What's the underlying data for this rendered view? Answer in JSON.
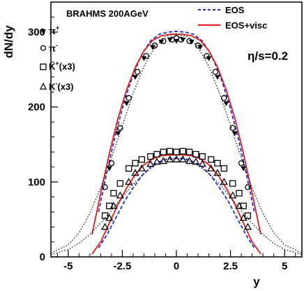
{
  "chart_data": {
    "type": "scatter",
    "title": "BRAHMS 200AGeV",
    "xlabel": "y",
    "ylabel": "dN/dy",
    "xlim": [
      -5.8,
      5.8
    ],
    "ylim": [
      0,
      340
    ],
    "x_ticks": [
      -5,
      -2.5,
      0,
      2.5,
      5
    ],
    "x_tick_labels": [
      "-5",
      "-2.5",
      "0",
      "2.5",
      "5"
    ],
    "y_ticks": [
      0,
      100,
      200,
      300
    ],
    "y_tick_labels": [
      "0",
      "100",
      "200",
      "300"
    ],
    "annotation": "η/s=0.2",
    "legend_placement": "top-left (markers), top-right (lines)",
    "series": [
      {
        "name": "EOS",
        "kind": "line",
        "style": "dashed",
        "color": "#1f2fd0",
        "x": [
          -3.6,
          -3.2,
          -2.8,
          -2.4,
          -2.0,
          -1.6,
          -1.2,
          -0.8,
          -0.4,
          0,
          0.4,
          0.8,
          1.2,
          1.6,
          2.0,
          2.4,
          2.8,
          3.2,
          3.6
        ],
        "y": [
          60,
          115,
          165,
          208,
          243,
          270,
          288,
          297,
          300,
          301,
          300,
          297,
          288,
          270,
          243,
          208,
          165,
          115,
          60
        ]
      },
      {
        "name": "EOS+visc",
        "kind": "line",
        "style": "solid",
        "color": "#e31a1c",
        "x": [
          -3.9,
          -3.5,
          -3.1,
          -2.7,
          -2.3,
          -1.9,
          -1.5,
          -1.1,
          -0.7,
          -0.3,
          0,
          0.3,
          0.7,
          1.1,
          1.5,
          1.9,
          2.3,
          2.7,
          3.1,
          3.5,
          3.9
        ],
        "y": [
          30,
          85,
          138,
          185,
          223,
          253,
          275,
          289,
          295,
          297,
          297,
          297,
          295,
          289,
          275,
          253,
          223,
          185,
          138,
          85,
          30
        ]
      },
      {
        "name": "EOS",
        "kind": "line",
        "style": "dashed",
        "color": "#1f2fd0",
        "x": [
          -3.6,
          -3.2,
          -2.8,
          -2.4,
          -2.0,
          -1.6,
          -1.2,
          -0.8,
          -0.4,
          0,
          0.4,
          0.8,
          1.2,
          1.6,
          2.0,
          2.4,
          2.8,
          3.2,
          3.6
        ],
        "y": [
          12,
          30,
          52,
          74,
          92,
          108,
          120,
          127,
          131,
          132,
          131,
          127,
          120,
          108,
          92,
          74,
          52,
          30,
          12
        ]
      },
      {
        "name": "EOS+visc",
        "kind": "line",
        "style": "solid",
        "color": "#e31a1c",
        "x": [
          -3.9,
          -3.5,
          -3.1,
          -2.7,
          -2.3,
          -1.9,
          -1.5,
          -1.1,
          -0.7,
          -0.3,
          0,
          0.3,
          0.7,
          1.1,
          1.5,
          1.9,
          2.3,
          2.7,
          3.1,
          3.5,
          3.9
        ],
        "y": [
          4,
          20,
          45,
          70,
          92,
          110,
          123,
          131,
          135,
          136,
          136,
          136,
          135,
          131,
          123,
          110,
          92,
          70,
          45,
          20,
          4
        ]
      },
      {
        "kind": "line",
        "style": "dotted",
        "color": "#000000",
        "x": [
          -5.8,
          -5.0,
          -4.5,
          -4.0,
          -3.5,
          -3.0,
          -2.5,
          -2.0,
          -1.5,
          -1.0,
          -0.5,
          0,
          0.5,
          1.0,
          1.5,
          2.0,
          2.5,
          3.0,
          3.5,
          4.0,
          4.5,
          5.0,
          5.8
        ],
        "y": [
          5,
          16,
          32,
          58,
          92,
          132,
          175,
          218,
          254,
          280,
          294,
          298,
          294,
          280,
          254,
          218,
          175,
          132,
          92,
          58,
          32,
          16,
          5
        ]
      },
      {
        "kind": "line",
        "style": "dotted",
        "color": "#000000",
        "x": [
          -5.8,
          -5.0,
          -4.5,
          -4.0,
          -3.5,
          -3.0,
          -2.5,
          -2.0,
          -1.5,
          -1.0,
          -0.5,
          0,
          0.5,
          1.0,
          1.5,
          2.0,
          2.5,
          3.0,
          3.5,
          4.0,
          4.5,
          5.0,
          5.8
        ],
        "y": [
          3,
          10,
          18,
          30,
          45,
          62,
          80,
          97,
          111,
          122,
          129,
          131,
          129,
          122,
          111,
          97,
          80,
          62,
          45,
          30,
          18,
          10,
          3
        ]
      },
      {
        "name": "π+",
        "kind": "marker",
        "marker": "triangle-down-filled",
        "x": [
          -3.1,
          -2.7,
          -2.3,
          -1.9,
          -1.5,
          -1.1,
          -0.7,
          -0.3,
          0,
          0.3,
          0.7,
          1.1,
          1.5,
          1.9,
          2.3,
          2.7,
          3.1
        ],
        "y": [
          118,
          165,
          205,
          240,
          265,
          280,
          287,
          290,
          288,
          290,
          287,
          280,
          265,
          240,
          205,
          165,
          118
        ]
      },
      {
        "name": "π-",
        "kind": "marker",
        "marker": "circle-open",
        "x": [
          -3.3,
          -3.0,
          -2.6,
          -2.2,
          -1.8,
          -1.4,
          -1.0,
          -0.6,
          -0.2,
          0,
          0.2,
          0.6,
          1.0,
          1.4,
          1.8,
          2.2,
          2.6,
          3.0,
          3.3
        ],
        "y": [
          93,
          125,
          172,
          212,
          247,
          268,
          282,
          288,
          290,
          292,
          290,
          288,
          282,
          268,
          247,
          212,
          172,
          125,
          93
        ]
      },
      {
        "name": "K+(x3)",
        "kind": "marker",
        "marker": "square-open",
        "x": [
          -3.3,
          -3.1,
          -2.9,
          -2.6,
          -2.2,
          -1.9,
          -1.6,
          -1.2,
          -0.9,
          -0.6,
          -0.3,
          0,
          0.3,
          0.6,
          0.9,
          1.2,
          1.6,
          1.9,
          2.2,
          2.6,
          2.9,
          3.1,
          3.3
        ],
        "y": [
          55,
          68,
          85,
          98,
          118,
          125,
          130,
          134,
          137,
          140,
          141,
          140,
          141,
          140,
          137,
          134,
          130,
          125,
          118,
          98,
          85,
          68,
          55
        ]
      },
      {
        "name": "K-(x3)",
        "kind": "marker",
        "marker": "triangle-up-open",
        "x": [
          -3.3,
          -3.1,
          -2.9,
          -2.6,
          -2.2,
          -1.9,
          -1.6,
          -1.2,
          -0.9,
          -0.6,
          -0.3,
          0,
          0.3,
          0.6,
          0.9,
          1.2,
          1.6,
          1.9,
          2.2,
          2.6,
          2.9,
          3.1,
          3.3
        ],
        "y": [
          40,
          52,
          68,
          82,
          100,
          112,
          118,
          124,
          127,
          128,
          130,
          130,
          130,
          128,
          127,
          124,
          118,
          112,
          100,
          82,
          68,
          52,
          40
        ]
      }
    ]
  }
}
